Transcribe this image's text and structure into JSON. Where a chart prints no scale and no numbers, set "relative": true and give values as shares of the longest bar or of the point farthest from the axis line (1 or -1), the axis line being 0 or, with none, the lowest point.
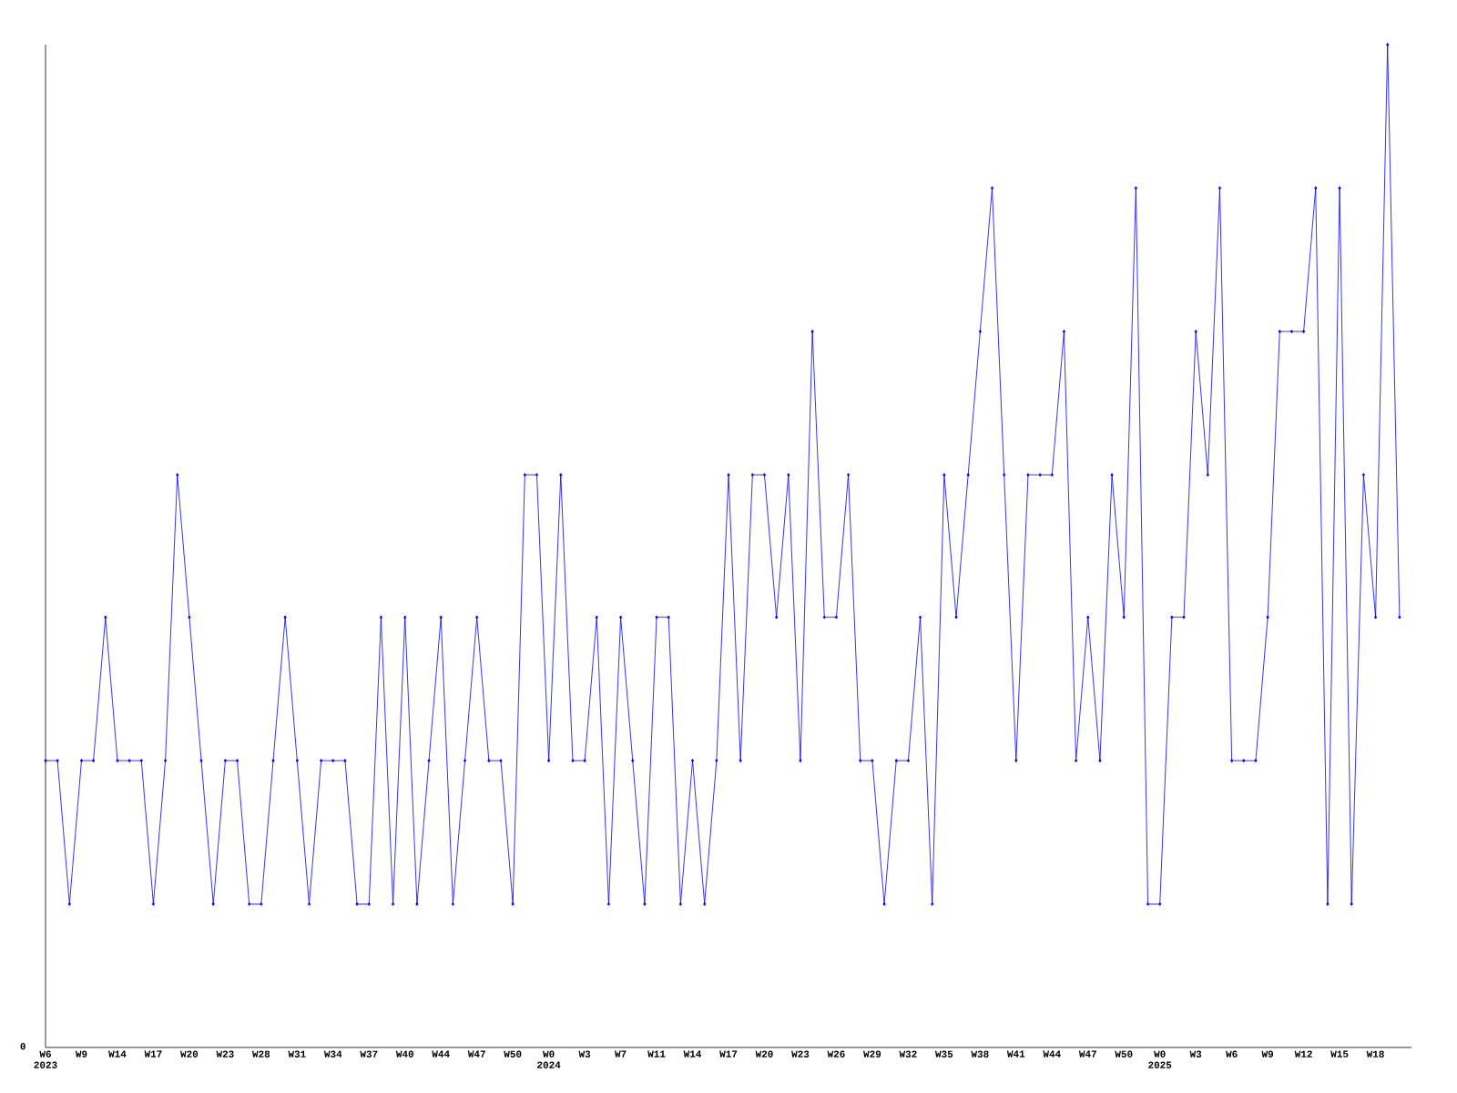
{
  "chart_data": {
    "type": "line",
    "relative": true,
    "color": "#0000ff",
    "marker": "diamond",
    "line_style": "solid",
    "annotations": [
      "0"
    ],
    "categories": [
      "W6 2023",
      null,
      null,
      "W9",
      null,
      null,
      "W14",
      null,
      null,
      "W17",
      null,
      null,
      "W20",
      null,
      null,
      "W23",
      null,
      null,
      "W28",
      null,
      null,
      "W31",
      null,
      null,
      "W34",
      null,
      null,
      "W37",
      null,
      null,
      "W40",
      null,
      null,
      "W44",
      null,
      null,
      "W47",
      null,
      null,
      "W50",
      null,
      null,
      "W0 2024",
      null,
      null,
      "W3",
      null,
      null,
      "W7",
      null,
      null,
      "W11",
      null,
      null,
      "W14",
      null,
      null,
      "W17",
      null,
      null,
      "W20",
      null,
      null,
      "W23",
      null,
      null,
      "W26",
      null,
      null,
      "W29",
      null,
      null,
      "W32",
      null,
      null,
      "W35",
      null,
      null,
      "W38",
      null,
      null,
      "W41",
      null,
      null,
      "W44",
      null,
      null,
      "W47",
      null,
      null,
      "W50",
      null,
      null,
      "W0 2025",
      null,
      null,
      "W3",
      null,
      null,
      "W6",
      null,
      null,
      "W9",
      null,
      null,
      "W12",
      null,
      null,
      "W15",
      null,
      null,
      "W18",
      null,
      null
    ],
    "values": [
      0.286,
      0.286,
      0.143,
      0.286,
      0.286,
      0.429,
      0.286,
      0.286,
      0.286,
      0.143,
      0.286,
      0.571,
      0.429,
      0.286,
      0.143,
      0.286,
      0.286,
      0.143,
      0.143,
      0.286,
      0.429,
      0.286,
      0.143,
      0.286,
      0.286,
      0.286,
      0.143,
      0.143,
      0.429,
      0.143,
      0.429,
      0.143,
      0.286,
      0.429,
      0.143,
      0.286,
      0.429,
      0.286,
      0.286,
      0.143,
      0.571,
      0.571,
      0.286,
      0.571,
      0.286,
      0.286,
      0.429,
      0.143,
      0.429,
      0.286,
      0.143,
      0.429,
      0.429,
      0.143,
      0.286,
      0.143,
      0.286,
      0.571,
      0.286,
      0.571,
      0.571,
      0.429,
      0.571,
      0.286,
      0.714,
      0.429,
      0.429,
      0.571,
      0.286,
      0.286,
      0.143,
      0.286,
      0.286,
      0.429,
      0.143,
      0.571,
      0.429,
      0.571,
      0.714,
      0.857,
      0.571,
      0.286,
      0.571,
      0.571,
      0.571,
      0.714,
      0.286,
      0.429,
      0.286,
      0.571,
      0.429,
      0.857,
      0.143,
      0.143,
      0.429,
      0.429,
      0.714,
      0.571,
      0.857,
      0.286,
      0.286,
      0.286,
      0.429,
      0.714,
      0.714,
      0.714,
      0.857,
      0.143,
      0.857,
      0.143,
      0.571,
      0.429,
      1,
      0.429
    ]
  }
}
